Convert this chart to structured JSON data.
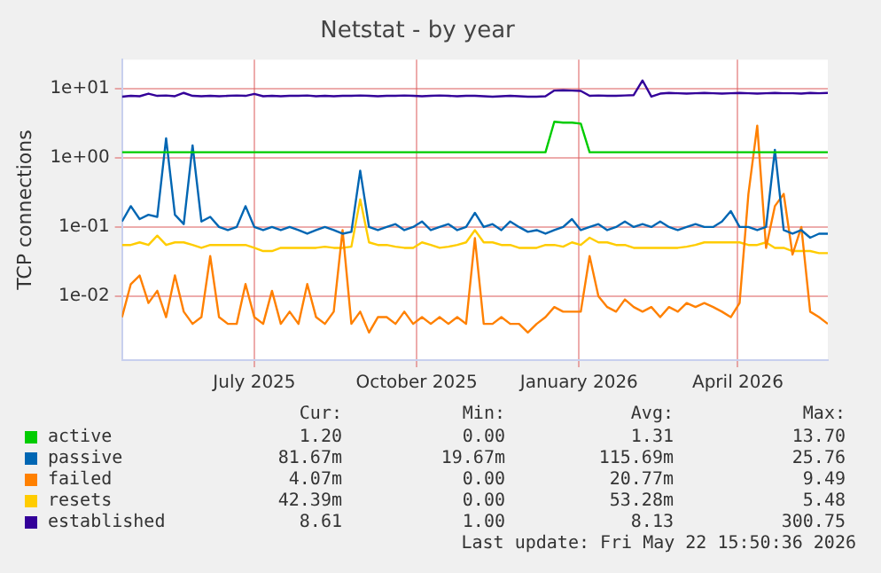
{
  "chart_data": {
    "type": "line",
    "title": "Netstat - by year",
    "ylabel": "TCP connections",
    "x": [
      "2025-04-17",
      "2025-04-22",
      "2025-04-27",
      "2025-05-02",
      "2025-05-07",
      "2025-05-12",
      "2025-05-17",
      "2025-05-22",
      "2025-05-27",
      "2025-06-01",
      "2025-06-06",
      "2025-06-11",
      "2025-06-16",
      "2025-06-21",
      "2025-06-26",
      "2025-07-01",
      "2025-07-06",
      "2025-07-11",
      "2025-07-16",
      "2025-07-21",
      "2025-07-26",
      "2025-07-31",
      "2025-08-05",
      "2025-08-10",
      "2025-08-15",
      "2025-08-20",
      "2025-08-25",
      "2025-08-30",
      "2025-09-04",
      "2025-09-09",
      "2025-09-14",
      "2025-09-19",
      "2025-09-24",
      "2025-09-29",
      "2025-10-04",
      "2025-10-09",
      "2025-10-14",
      "2025-10-19",
      "2025-10-24",
      "2025-10-29",
      "2025-11-03",
      "2025-11-08",
      "2025-11-13",
      "2025-11-18",
      "2025-11-23",
      "2025-11-28",
      "2025-12-03",
      "2025-12-08",
      "2025-12-13",
      "2025-12-18",
      "2025-12-23",
      "2025-12-28",
      "2026-01-02",
      "2026-01-07",
      "2026-01-12",
      "2026-01-17",
      "2026-01-22",
      "2026-01-27",
      "2026-02-01",
      "2026-02-06",
      "2026-02-11",
      "2026-02-16",
      "2026-02-21",
      "2026-02-26",
      "2026-03-03",
      "2026-03-08",
      "2026-03-13",
      "2026-03-18",
      "2026-03-23",
      "2026-03-28",
      "2026-04-02",
      "2026-04-07",
      "2026-04-12",
      "2026-04-17",
      "2026-04-22",
      "2026-04-27",
      "2026-05-02",
      "2026-05-07",
      "2026-05-12",
      "2026-05-17",
      "2026-05-22"
    ],
    "series": [
      {
        "name": "active",
        "color": "#00cc00",
        "values": [
          1.2,
          1.2,
          1.2,
          1.2,
          1.2,
          1.2,
          1.2,
          1.2,
          1.2,
          1.2,
          1.2,
          1.2,
          1.2,
          1.2,
          1.2,
          1.2,
          1.2,
          1.2,
          1.2,
          1.2,
          1.2,
          1.2,
          1.2,
          1.2,
          1.2,
          1.2,
          1.2,
          1.2,
          1.2,
          1.2,
          1.2,
          1.2,
          1.2,
          1.2,
          1.2,
          1.2,
          1.2,
          1.2,
          1.2,
          1.2,
          1.2,
          1.2,
          1.2,
          1.2,
          1.2,
          1.2,
          1.2,
          1.2,
          1.2,
          3.3,
          3.2,
          3.2,
          3.1,
          1.2,
          1.2,
          1.2,
          1.2,
          1.2,
          1.2,
          1.2,
          1.2,
          1.2,
          1.2,
          1.2,
          1.2,
          1.2,
          1.2,
          1.2,
          1.2,
          1.2,
          1.2,
          1.2,
          1.2,
          1.2,
          1.2,
          1.2,
          1.2,
          1.2,
          1.2,
          1.2,
          1.2
        ]
      },
      {
        "name": "passive",
        "color": "#0066b3",
        "values": [
          0.12,
          0.2,
          0.13,
          0.15,
          0.14,
          1.9,
          0.15,
          0.11,
          1.5,
          0.12,
          0.14,
          0.1,
          0.09,
          0.1,
          0.2,
          0.1,
          0.09,
          0.1,
          0.09,
          0.1,
          0.09,
          0.08,
          0.09,
          0.1,
          0.09,
          0.08,
          0.085,
          0.65,
          0.1,
          0.09,
          0.1,
          0.11,
          0.09,
          0.1,
          0.12,
          0.09,
          0.1,
          0.11,
          0.09,
          0.1,
          0.16,
          0.1,
          0.11,
          0.09,
          0.12,
          0.1,
          0.085,
          0.09,
          0.08,
          0.09,
          0.1,
          0.13,
          0.09,
          0.1,
          0.11,
          0.09,
          0.1,
          0.12,
          0.1,
          0.11,
          0.1,
          0.12,
          0.1,
          0.09,
          0.1,
          0.11,
          0.1,
          0.1,
          0.12,
          0.17,
          0.1,
          0.1,
          0.09,
          0.1,
          1.3,
          0.09,
          0.08,
          0.09,
          0.07,
          0.08,
          0.08
        ]
      },
      {
        "name": "failed",
        "color": "#ff8000",
        "values": [
          0.005,
          0.015,
          0.02,
          0.008,
          0.012,
          0.005,
          0.02,
          0.006,
          0.004,
          0.005,
          0.038,
          0.005,
          0.004,
          0.004,
          0.015,
          0.005,
          0.004,
          0.012,
          0.004,
          0.006,
          0.004,
          0.015,
          0.005,
          0.004,
          0.006,
          0.09,
          0.004,
          0.006,
          0.003,
          0.005,
          0.005,
          0.004,
          0.006,
          0.004,
          0.005,
          0.004,
          0.005,
          0.004,
          0.005,
          0.004,
          0.069,
          0.004,
          0.004,
          0.005,
          0.004,
          0.004,
          0.003,
          0.004,
          0.005,
          0.007,
          0.006,
          0.006,
          0.006,
          0.038,
          0.01,
          0.007,
          0.006,
          0.009,
          0.007,
          0.006,
          0.007,
          0.005,
          0.007,
          0.006,
          0.008,
          0.007,
          0.008,
          0.007,
          0.006,
          0.005,
          0.008,
          0.3,
          2.9,
          0.05,
          0.2,
          0.3,
          0.04,
          0.1,
          0.006,
          0.005,
          0.004
        ]
      },
      {
        "name": "resets",
        "color": "#ffcc00",
        "values": [
          0.055,
          0.055,
          0.06,
          0.055,
          0.075,
          0.055,
          0.06,
          0.06,
          0.055,
          0.05,
          0.055,
          0.055,
          0.055,
          0.055,
          0.055,
          0.05,
          0.045,
          0.045,
          0.05,
          0.05,
          0.05,
          0.05,
          0.05,
          0.052,
          0.05,
          0.05,
          0.052,
          0.25,
          0.06,
          0.055,
          0.055,
          0.052,
          0.05,
          0.05,
          0.06,
          0.055,
          0.05,
          0.052,
          0.055,
          0.06,
          0.09,
          0.06,
          0.06,
          0.055,
          0.055,
          0.05,
          0.05,
          0.05,
          0.055,
          0.055,
          0.052,
          0.06,
          0.055,
          0.07,
          0.06,
          0.06,
          0.055,
          0.055,
          0.05,
          0.05,
          0.05,
          0.05,
          0.05,
          0.05,
          0.052,
          0.055,
          0.06,
          0.06,
          0.06,
          0.06,
          0.06,
          0.055,
          0.055,
          0.06,
          0.05,
          0.05,
          0.045,
          0.045,
          0.045,
          0.042,
          0.042
        ]
      },
      {
        "name": "established",
        "color": "#330099",
        "values": [
          7.6,
          7.8,
          7.7,
          8.4,
          7.8,
          7.9,
          7.7,
          8.6,
          7.8,
          7.7,
          7.8,
          7.7,
          7.8,
          7.9,
          7.8,
          8.3,
          7.7,
          7.8,
          7.7,
          7.8,
          7.8,
          7.9,
          7.7,
          7.8,
          7.7,
          7.8,
          7.8,
          7.9,
          7.8,
          7.7,
          7.8,
          7.8,
          7.9,
          7.8,
          7.7,
          7.8,
          7.9,
          7.8,
          7.7,
          7.8,
          7.8,
          7.7,
          7.6,
          7.7,
          7.8,
          7.7,
          7.6,
          7.6,
          7.7,
          9.3,
          9.4,
          9.3,
          9.2,
          7.8,
          7.9,
          7.8,
          7.8,
          7.9,
          8.0,
          13.0,
          7.6,
          8.4,
          8.6,
          8.5,
          8.4,
          8.5,
          8.6,
          8.5,
          8.4,
          8.5,
          8.6,
          8.5,
          8.4,
          8.5,
          8.6,
          8.5,
          8.5,
          8.4,
          8.6,
          8.5,
          8.6
        ]
      }
    ],
    "log": "y",
    "ylim": [
      0.0012,
      26
    ],
    "yticks": [
      {
        "value": 0.01,
        "label": "1e-02"
      },
      {
        "value": 0.1,
        "label": "1e-01"
      },
      {
        "value": 1,
        "label": "1e+00"
      },
      {
        "value": 10,
        "label": "1e+01"
      }
    ],
    "xlim": [
      "2025-04-17",
      "2026-05-22"
    ],
    "xticks": [
      {
        "value": "2025-07-01",
        "label": "July 2025"
      },
      {
        "value": "2025-10-01",
        "label": "October 2025"
      },
      {
        "value": "2026-01-01",
        "label": "January 2026"
      },
      {
        "value": "2026-04-01",
        "label": "April 2026"
      }
    ],
    "grid": true,
    "legend": "bottom",
    "marker": "none",
    "line_style": "solid",
    "annotations": [
      "Cur:",
      "Min:",
      "Avg:",
      "Max:",
      "1.20",
      "0.00",
      "1.31",
      "13.70",
      "81.67m",
      "19.67m",
      "115.69m",
      "25.76",
      "4.07m",
      "0.00",
      "20.77m",
      "9.49",
      "42.39m",
      "0.00",
      "53.28m",
      "5.48",
      "8.61",
      "1.00",
      "8.13",
      "300.75",
      "Last update: Fri May 22 15:50:36 2026"
    ]
  }
}
